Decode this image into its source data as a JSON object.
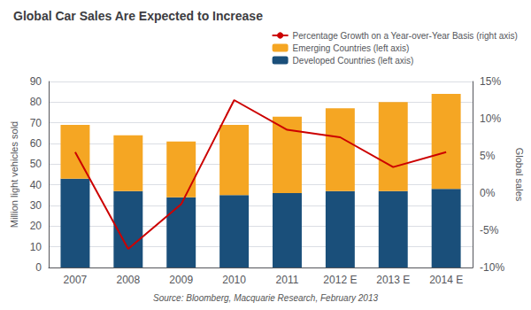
{
  "chart_data": {
    "type": "bar",
    "title": "Global Car Sales Are Expected to Increase",
    "annotations": [
      "Source: Bloomberg, Macquarie Research, February 2013"
    ],
    "categories": [
      "2007",
      "2008",
      "2009",
      "2010",
      "2011",
      "2012 E",
      "2013 E",
      "2014 E"
    ],
    "series": [
      {
        "name": "Developed Countries (left axis)",
        "color": "#1a4f7a",
        "values": [
          43,
          37,
          34,
          35,
          36,
          37,
          37,
          38
        ]
      },
      {
        "name": "Emerging Countries (left axis)",
        "color": "#f5a623",
        "values": [
          26,
          27,
          27,
          34,
          37,
          40,
          43,
          46
        ]
      },
      {
        "name": "Percentage Growth on a Year-over-Year Basis (right axis)",
        "type": "line",
        "axis": "y2",
        "color": "#cc0000",
        "values": [
          5.5,
          -7.5,
          -1.5,
          12.5,
          8.5,
          7.5,
          3.5,
          5.5
        ]
      }
    ],
    "stacked": true,
    "ylabel": "Million light vehicles sold",
    "y2label": "Global sales",
    "ylim": [
      0,
      90
    ],
    "yticks": [
      0,
      10,
      20,
      30,
      40,
      50,
      60,
      70,
      80,
      90
    ],
    "y2lim": [
      -10,
      15
    ],
    "y2ticks": [
      {
        "value": -10,
        "label": "-10%"
      },
      {
        "value": -5,
        "label": "-5%"
      },
      {
        "value": 0,
        "label": "0%"
      },
      {
        "value": 5,
        "label": "5%"
      },
      {
        "value": 10,
        "label": "10%"
      },
      {
        "value": 15,
        "label": "15%"
      }
    ],
    "grid": true,
    "legend": "upper right"
  }
}
